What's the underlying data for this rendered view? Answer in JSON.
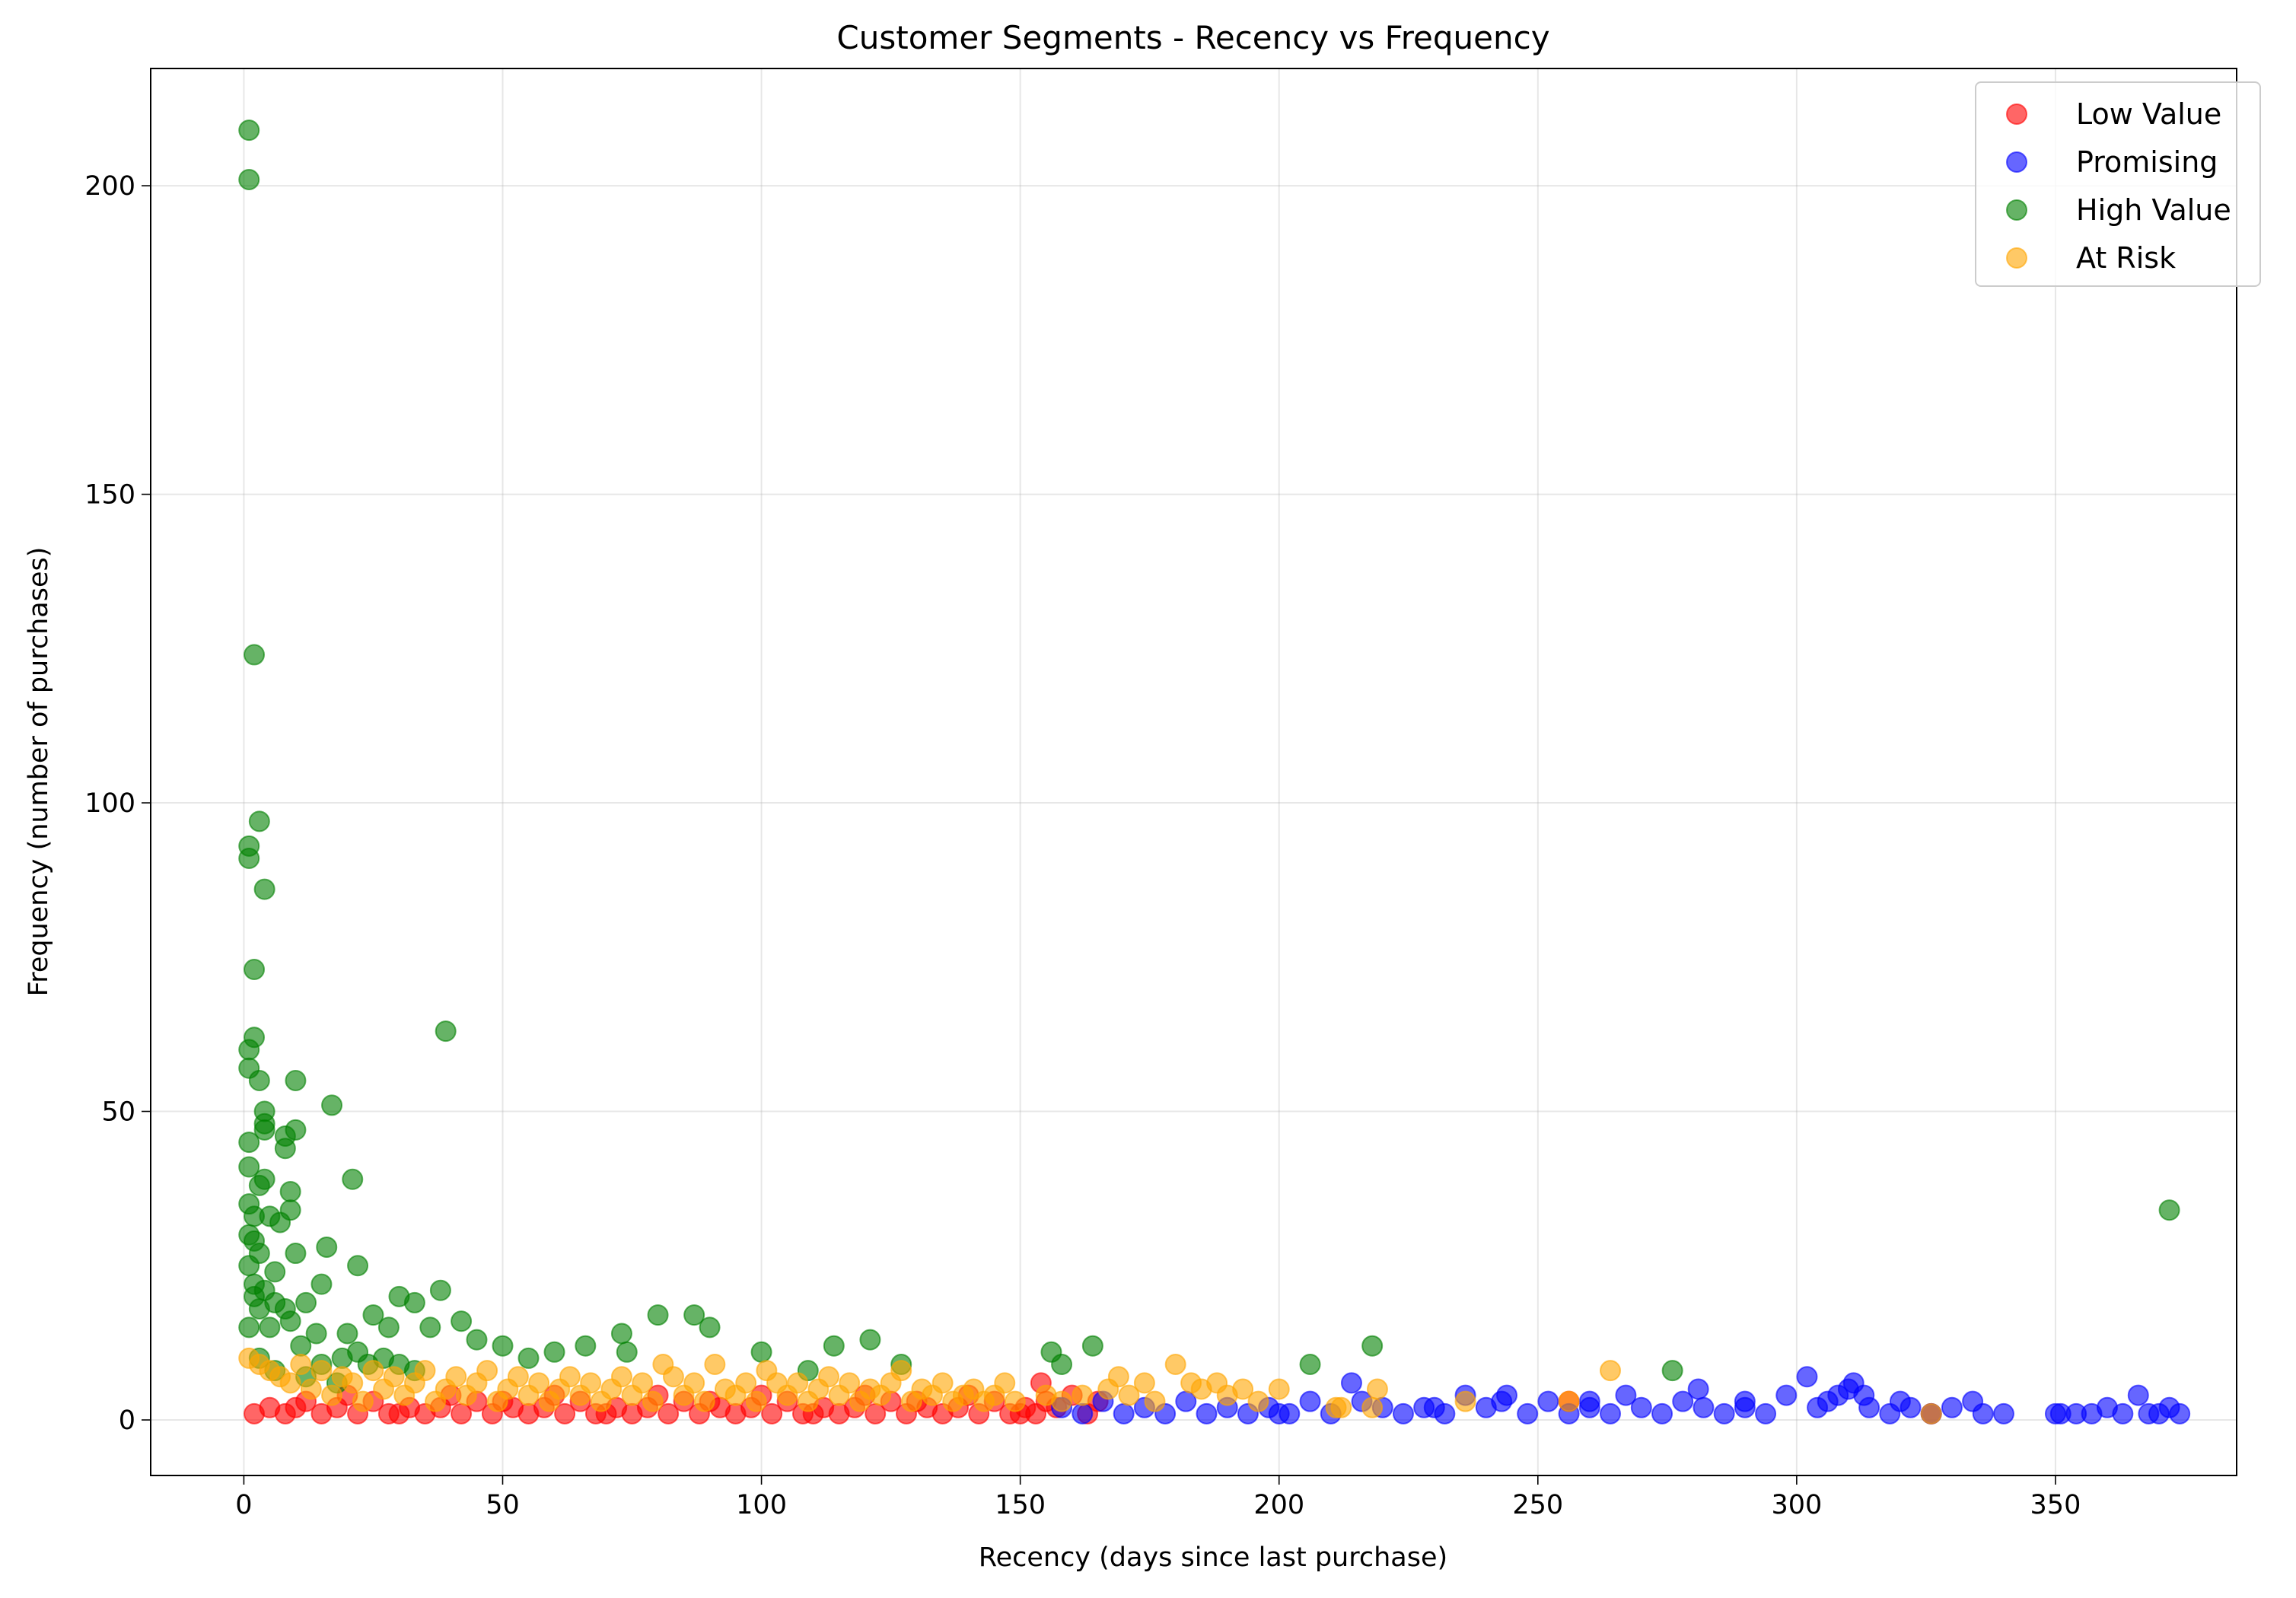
{
  "chart_data": {
    "type": "scatter",
    "title": "Customer Segments - Recency vs Frequency",
    "xlabel": "Recency (days since last purchase)",
    "ylabel": "Frequency (number of purchases)",
    "xlim": [
      -18,
      385
    ],
    "ylim": [
      -9,
      219
    ],
    "xticks": [
      0,
      50,
      100,
      150,
      200,
      250,
      300,
      350
    ],
    "yticks": [
      0,
      50,
      100,
      150,
      200
    ],
    "grid": true,
    "legend_position": "top-right",
    "marker_alpha": 0.6,
    "series": [
      {
        "name": "Low Value",
        "color": "#ff0000",
        "points": [
          [
            2,
            1
          ],
          [
            5,
            2
          ],
          [
            8,
            1
          ],
          [
            12,
            3
          ],
          [
            15,
            1
          ],
          [
            18,
            2
          ],
          [
            22,
            1
          ],
          [
            25,
            3
          ],
          [
            28,
            1
          ],
          [
            32,
            2
          ],
          [
            35,
            1
          ],
          [
            38,
            2
          ],
          [
            42,
            1
          ],
          [
            45,
            3
          ],
          [
            48,
            1
          ],
          [
            52,
            2
          ],
          [
            55,
            1
          ],
          [
            58,
            2
          ],
          [
            62,
            1
          ],
          [
            65,
            3
          ],
          [
            68,
            1
          ],
          [
            72,
            2
          ],
          [
            75,
            1
          ],
          [
            78,
            2
          ],
          [
            82,
            1
          ],
          [
            85,
            3
          ],
          [
            88,
            1
          ],
          [
            92,
            2
          ],
          [
            95,
            1
          ],
          [
            98,
            2
          ],
          [
            102,
            1
          ],
          [
            105,
            3
          ],
          [
            108,
            1
          ],
          [
            112,
            2
          ],
          [
            115,
            1
          ],
          [
            118,
            2
          ],
          [
            122,
            1
          ],
          [
            125,
            3
          ],
          [
            128,
            1
          ],
          [
            132,
            2
          ],
          [
            135,
            1
          ],
          [
            138,
            2
          ],
          [
            142,
            1
          ],
          [
            145,
            3
          ],
          [
            148,
            1
          ],
          [
            151,
            2
          ],
          [
            153,
            1
          ],
          [
            154,
            6
          ],
          [
            155,
            3
          ],
          [
            157,
            2
          ],
          [
            160,
            4
          ],
          [
            163,
            1
          ],
          [
            165,
            3
          ],
          [
            20,
            4
          ],
          [
            40,
            4
          ],
          [
            60,
            4
          ],
          [
            80,
            4
          ],
          [
            100,
            4
          ],
          [
            120,
            4
          ],
          [
            140,
            4
          ],
          [
            10,
            2
          ],
          [
            30,
            1
          ],
          [
            50,
            3
          ],
          [
            70,
            1
          ],
          [
            90,
            3
          ],
          [
            110,
            1
          ],
          [
            130,
            3
          ],
          [
            150,
            1
          ],
          [
            256,
            3
          ],
          [
            326,
            1
          ]
        ]
      },
      {
        "name": "Promising",
        "color": "#0000ff",
        "points": [
          [
            158,
            2
          ],
          [
            162,
            1
          ],
          [
            166,
            3
          ],
          [
            170,
            1
          ],
          [
            174,
            2
          ],
          [
            178,
            1
          ],
          [
            182,
            3
          ],
          [
            186,
            1
          ],
          [
            190,
            2
          ],
          [
            194,
            1
          ],
          [
            198,
            2
          ],
          [
            202,
            1
          ],
          [
            206,
            3
          ],
          [
            210,
            1
          ],
          [
            214,
            6
          ],
          [
            216,
            3
          ],
          [
            220,
            2
          ],
          [
            224,
            1
          ],
          [
            228,
            2
          ],
          [
            232,
            1
          ],
          [
            236,
            4
          ],
          [
            240,
            2
          ],
          [
            243,
            3
          ],
          [
            244,
            4
          ],
          [
            248,
            1
          ],
          [
            252,
            3
          ],
          [
            256,
            1
          ],
          [
            260,
            2
          ],
          [
            264,
            1
          ],
          [
            267,
            4
          ],
          [
            270,
            2
          ],
          [
            274,
            1
          ],
          [
            278,
            3
          ],
          [
            281,
            5
          ],
          [
            282,
            2
          ],
          [
            286,
            1
          ],
          [
            290,
            3
          ],
          [
            294,
            1
          ],
          [
            298,
            4
          ],
          [
            302,
            7
          ],
          [
            304,
            2
          ],
          [
            306,
            3
          ],
          [
            308,
            4
          ],
          [
            310,
            5
          ],
          [
            311,
            6
          ],
          [
            313,
            4
          ],
          [
            314,
            2
          ],
          [
            318,
            1
          ],
          [
            322,
            2
          ],
          [
            326,
            1
          ],
          [
            330,
            2
          ],
          [
            334,
            3
          ],
          [
            336,
            1
          ],
          [
            340,
            1
          ],
          [
            351,
            1
          ],
          [
            354,
            1
          ],
          [
            357,
            1
          ],
          [
            360,
            2
          ],
          [
            363,
            1
          ],
          [
            366,
            4
          ],
          [
            368,
            1
          ],
          [
            370,
            1
          ],
          [
            372,
            2
          ],
          [
            374,
            1
          ],
          [
            200,
            1
          ],
          [
            230,
            2
          ],
          [
            260,
            3
          ],
          [
            290,
            2
          ],
          [
            320,
            3
          ],
          [
            350,
            1
          ]
        ]
      },
      {
        "name": "High Value",
        "color": "#008000",
        "points": [
          [
            1,
            209
          ],
          [
            1,
            201
          ],
          [
            2,
            124
          ],
          [
            3,
            97
          ],
          [
            1,
            93
          ],
          [
            1,
            91
          ],
          [
            4,
            86
          ],
          [
            2,
            73
          ],
          [
            39,
            63
          ],
          [
            2,
            62
          ],
          [
            1,
            60
          ],
          [
            1,
            57
          ],
          [
            10,
            55
          ],
          [
            3,
            55
          ],
          [
            17,
            51
          ],
          [
            4,
            50
          ],
          [
            4,
            48
          ],
          [
            10,
            47
          ],
          [
            4,
            47
          ],
          [
            8,
            46
          ],
          [
            8,
            44
          ],
          [
            1,
            45
          ],
          [
            1,
            41
          ],
          [
            21,
            39
          ],
          [
            4,
            39
          ],
          [
            3,
            38
          ],
          [
            9,
            37
          ],
          [
            1,
            35
          ],
          [
            5,
            33
          ],
          [
            2,
            33
          ],
          [
            7,
            32
          ],
          [
            9,
            34
          ],
          [
            16,
            28
          ],
          [
            10,
            27
          ],
          [
            1,
            30
          ],
          [
            2,
            29
          ],
          [
            3,
            27
          ],
          [
            1,
            25
          ],
          [
            22,
            25
          ],
          [
            6,
            24
          ],
          [
            2,
            22
          ],
          [
            15,
            22
          ],
          [
            38,
            21
          ],
          [
            30,
            20
          ],
          [
            33,
            19
          ],
          [
            12,
            19
          ],
          [
            8,
            18
          ],
          [
            25,
            17
          ],
          [
            80,
            17
          ],
          [
            87,
            17
          ],
          [
            42,
            16
          ],
          [
            90,
            15
          ],
          [
            36,
            15
          ],
          [
            28,
            15
          ],
          [
            5,
            15
          ],
          [
            1,
            15
          ],
          [
            20,
            14
          ],
          [
            73,
            14
          ],
          [
            45,
            13
          ],
          [
            121,
            13
          ],
          [
            50,
            12
          ],
          [
            66,
            12
          ],
          [
            114,
            12
          ],
          [
            164,
            12
          ],
          [
            218,
            12
          ],
          [
            60,
            11
          ],
          [
            74,
            11
          ],
          [
            100,
            11
          ],
          [
            156,
            11
          ],
          [
            27,
            10
          ],
          [
            55,
            10
          ],
          [
            3,
            10
          ],
          [
            15,
            9
          ],
          [
            206,
            9
          ],
          [
            158,
            9
          ],
          [
            127,
            9
          ],
          [
            109,
            8
          ],
          [
            276,
            8
          ],
          [
            6,
            8
          ],
          [
            12,
            7
          ],
          [
            18,
            6
          ],
          [
            2,
            20
          ],
          [
            6,
            19
          ],
          [
            4,
            21
          ],
          [
            3,
            18
          ],
          [
            9,
            16
          ],
          [
            14,
            14
          ],
          [
            11,
            12
          ],
          [
            22,
            11
          ],
          [
            19,
            10
          ],
          [
            24,
            9
          ],
          [
            30,
            9
          ],
          [
            33,
            8
          ],
          [
            372,
            34
          ]
        ]
      },
      {
        "name": "At Risk",
        "color": "#ffa500",
        "points": [
          [
            1,
            10
          ],
          [
            3,
            9
          ],
          [
            5,
            8
          ],
          [
            7,
            7
          ],
          [
            9,
            6
          ],
          [
            11,
            9
          ],
          [
            13,
            5
          ],
          [
            15,
            8
          ],
          [
            17,
            4
          ],
          [
            19,
            7
          ],
          [
            21,
            6
          ],
          [
            23,
            3
          ],
          [
            25,
            8
          ],
          [
            27,
            5
          ],
          [
            29,
            7
          ],
          [
            31,
            4
          ],
          [
            33,
            6
          ],
          [
            35,
            8
          ],
          [
            37,
            3
          ],
          [
            39,
            5
          ],
          [
            41,
            7
          ],
          [
            43,
            4
          ],
          [
            45,
            6
          ],
          [
            47,
            8
          ],
          [
            49,
            3
          ],
          [
            51,
            5
          ],
          [
            53,
            7
          ],
          [
            55,
            4
          ],
          [
            57,
            6
          ],
          [
            59,
            3
          ],
          [
            61,
            5
          ],
          [
            63,
            7
          ],
          [
            65,
            4
          ],
          [
            67,
            6
          ],
          [
            69,
            3
          ],
          [
            71,
            5
          ],
          [
            73,
            7
          ],
          [
            75,
            4
          ],
          [
            77,
            6
          ],
          [
            79,
            3
          ],
          [
            81,
            9
          ],
          [
            83,
            7
          ],
          [
            85,
            4
          ],
          [
            87,
            6
          ],
          [
            89,
            3
          ],
          [
            91,
            9
          ],
          [
            93,
            5
          ],
          [
            95,
            4
          ],
          [
            97,
            6
          ],
          [
            99,
            3
          ],
          [
            101,
            8
          ],
          [
            103,
            6
          ],
          [
            105,
            4
          ],
          [
            107,
            6
          ],
          [
            109,
            3
          ],
          [
            111,
            5
          ],
          [
            113,
            7
          ],
          [
            115,
            4
          ],
          [
            117,
            6
          ],
          [
            119,
            3
          ],
          [
            121,
            5
          ],
          [
            123,
            4
          ],
          [
            125,
            6
          ],
          [
            127,
            8
          ],
          [
            129,
            3
          ],
          [
            131,
            5
          ],
          [
            133,
            4
          ],
          [
            135,
            6
          ],
          [
            137,
            3
          ],
          [
            139,
            4
          ],
          [
            141,
            5
          ],
          [
            143,
            3
          ],
          [
            145,
            4
          ],
          [
            147,
            6
          ],
          [
            149,
            3
          ],
          [
            155,
            4
          ],
          [
            158,
            3
          ],
          [
            162,
            4
          ],
          [
            167,
            5
          ],
          [
            169,
            7
          ],
          [
            171,
            4
          ],
          [
            174,
            6
          ],
          [
            176,
            3
          ],
          [
            180,
            9
          ],
          [
            183,
            6
          ],
          [
            185,
            5
          ],
          [
            188,
            6
          ],
          [
            190,
            4
          ],
          [
            193,
            5
          ],
          [
            196,
            3
          ],
          [
            200,
            5
          ],
          [
            211,
            2
          ],
          [
            212,
            2
          ],
          [
            218,
            2
          ],
          [
            219,
            5
          ],
          [
            236,
            3
          ],
          [
            256,
            3
          ],
          [
            264,
            8
          ],
          [
            326,
            1
          ]
        ]
      }
    ]
  }
}
